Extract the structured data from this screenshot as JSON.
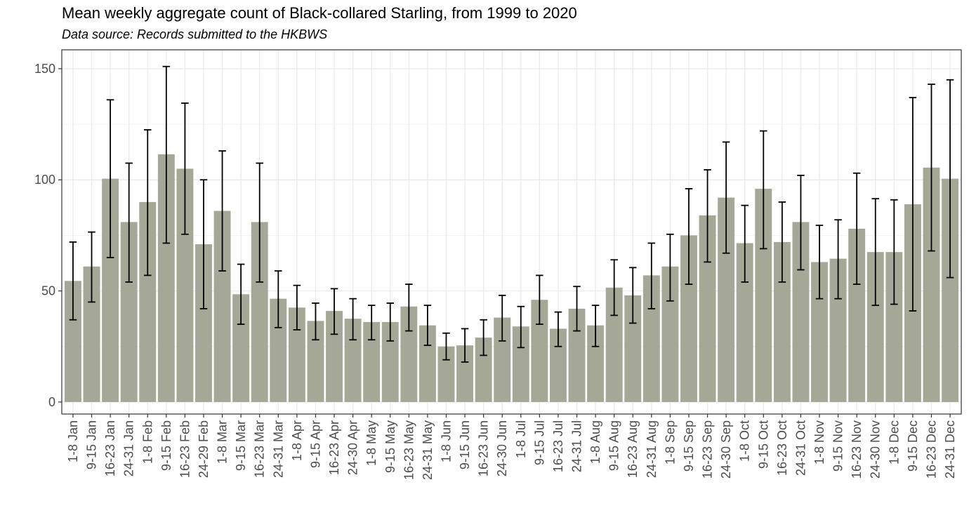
{
  "chart_data": {
    "type": "bar",
    "title": "Mean weekly aggregate count of Black-collared Starling, from 1999 to 2020",
    "subtitle": "Data source: Records submitted to the HKBWS",
    "xlabel": "",
    "ylabel": "",
    "ylim": [
      0,
      160
    ],
    "yticks": [
      0,
      50,
      100,
      150
    ],
    "grid": true,
    "legend": "none",
    "bar_color": "#a6a897",
    "error_bar_color": "#000000",
    "categories": [
      "1-8 Jan",
      "9-15 Jan",
      "16-23 Jan",
      "24-31 Jan",
      "1-8 Feb",
      "9-15 Feb",
      "16-23 Feb",
      "24-29 Feb",
      "1-8 Mar",
      "9-15 Mar",
      "16-23 Mar",
      "24-31 Mar",
      "1-8 Apr",
      "9-15 Apr",
      "16-23 Apr",
      "24-30 Apr",
      "1-8 May",
      "9-15 May",
      "16-23 May",
      "24-31 May",
      "1-8 Jun",
      "9-15 Jun",
      "16-23 Jun",
      "24-30 Jun",
      "1-8 Jul",
      "9-15 Jul",
      "16-23 Jul",
      "24-31 Jul",
      "1-8 Aug",
      "9-15 Aug",
      "16-23 Aug",
      "24-31 Aug",
      "1-8 Sep",
      "9-15 Sep",
      "16-23 Sep",
      "24-30 Sep",
      "1-8 Oct",
      "9-15 Oct",
      "16-23 Oct",
      "24-31 Oct",
      "1-8 Nov",
      "9-15 Nov",
      "16-23 Nov",
      "24-30 Nov",
      "1-8 Dec",
      "9-15 Dec",
      "16-23 Dec",
      "24-31 Dec"
    ],
    "values": [
      54.5,
      61,
      100.5,
      81,
      90,
      111.5,
      105,
      71,
      86,
      48.5,
      81,
      46.5,
      42.5,
      36.5,
      41,
      37.5,
      36,
      36,
      43,
      34.5,
      25,
      25.5,
      29,
      38,
      34,
      46,
      33,
      42,
      34.5,
      51.5,
      48,
      57,
      61,
      75,
      84,
      92,
      71.5,
      96,
      72,
      81,
      63,
      64.5,
      78,
      67.5,
      67.5,
      89,
      105.5,
      100.5
    ],
    "error_low": [
      37,
      45,
      65,
      54,
      57,
      71.5,
      75.5,
      42,
      59,
      35,
      54,
      33.5,
      32.5,
      28,
      30.5,
      28,
      28,
      27.5,
      32,
      25.5,
      19,
      18,
      21,
      27.5,
      24.5,
      35,
      25,
      32,
      25,
      39,
      35.5,
      42,
      45.5,
      53,
      63,
      67,
      54,
      69,
      54,
      59.5,
      46.5,
      46.5,
      53,
      43.5,
      44,
      41,
      68,
      56
    ],
    "error_high": [
      72,
      76.5,
      136,
      107.5,
      122.5,
      151,
      134.5,
      100,
      113,
      62,
      107.5,
      59,
      52.5,
      44.5,
      51,
      46.5,
      43.5,
      44.5,
      53,
      43.5,
      31,
      33,
      37,
      48,
      43,
      57,
      40.5,
      52,
      43.5,
      64,
      60.5,
      71.5,
      75.5,
      96,
      104.5,
      117,
      88.5,
      122,
      90,
      102,
      79.5,
      82,
      103,
      91.5,
      91,
      137,
      143,
      145
    ]
  }
}
